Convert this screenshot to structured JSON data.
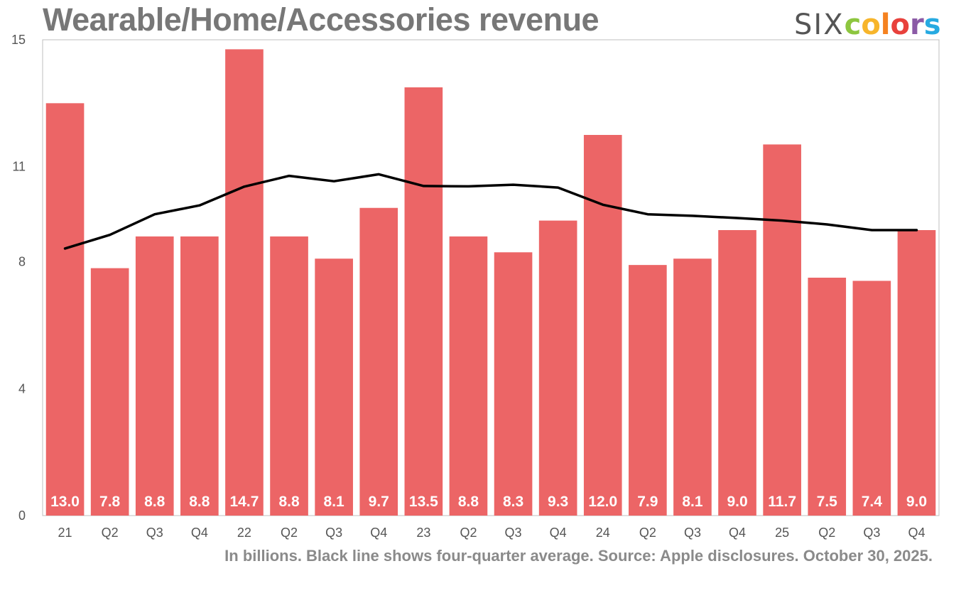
{
  "header": {
    "title": "Wearable/Home/Accessories revenue"
  },
  "logo": {
    "six": "SIX",
    "colors_letters": [
      "c",
      "o",
      "l",
      "o",
      "r",
      "s"
    ],
    "colors_palette": [
      "#8dc63f",
      "#f7b52b",
      "#f58220",
      "#e8413c",
      "#8b5aa6",
      "#27aae1"
    ]
  },
  "footnote": "In billions. Black line shows four-quarter average. Source: Apple disclosures. October 30, 2025.",
  "chart_data": {
    "type": "bar",
    "title": "Wearable/Home/Accessories revenue",
    "categories": [
      "21",
      "Q2",
      "Q3",
      "Q4",
      "22",
      "Q2",
      "Q3",
      "Q4",
      "23",
      "Q2",
      "Q3",
      "Q4",
      "24",
      "Q2",
      "Q3",
      "Q4",
      "25",
      "Q2",
      "Q3",
      "Q4"
    ],
    "series": [
      {
        "values": [
          13.0,
          7.8,
          8.8,
          8.8,
          14.7,
          8.8,
          8.1,
          9.7,
          13.5,
          8.8,
          8.3,
          9.3,
          12.0,
          7.9,
          8.1,
          9.0,
          11.7,
          7.5,
          7.4,
          9.0
        ],
        "data_labels": [
          "13.0",
          "7.8",
          "8.8",
          "8.8",
          "14.7",
          "8.8",
          "8.1",
          "9.7",
          "13.5",
          "8.8",
          "8.3",
          "9.3",
          "12.0",
          "7.9",
          "8.1",
          "9.0",
          "11.7",
          "7.5",
          "7.4",
          "9.0"
        ],
        "color": "#ec6566"
      },
      {
        "type": "line",
        "values": [
          8.42,
          8.85,
          9.5,
          9.78,
          10.37,
          10.71,
          10.54,
          10.76,
          10.39,
          10.38,
          10.43,
          10.34,
          9.8,
          9.5,
          9.45,
          9.38,
          9.3,
          9.18,
          9.0,
          9.0
        ],
        "color": "#000000"
      }
    ],
    "y_ticks": [
      "0",
      "4",
      "8",
      "11",
      "15"
    ],
    "ylim": [
      0,
      15
    ],
    "grid": false,
    "xlabel": "",
    "ylabel": ""
  }
}
